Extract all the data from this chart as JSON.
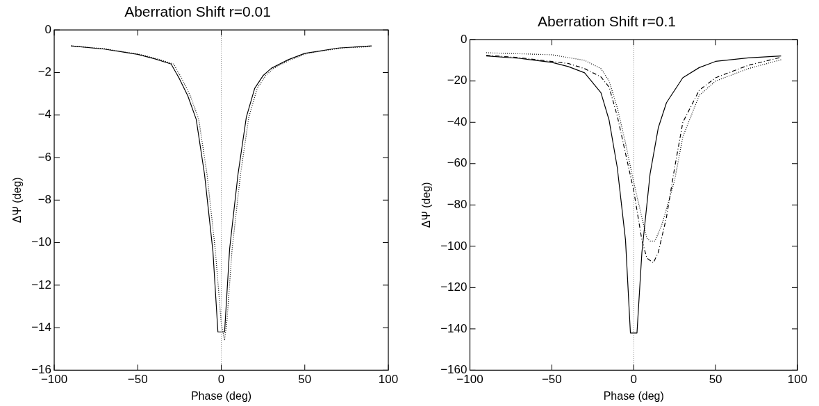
{
  "chart_data": [
    {
      "type": "line",
      "title": "Aberration Shift r=0.01",
      "xlabel": "Phase (deg)",
      "ylabel": "ΔΨ (deg)",
      "xlim": [
        -100,
        100
      ],
      "xticks": [
        -100,
        -50,
        0,
        50,
        100
      ],
      "ylim": [
        -16,
        0
      ],
      "yticks": [
        -16,
        -14,
        -12,
        -10,
        -8,
        -6,
        -4,
        -2,
        0
      ],
      "grid": false,
      "legend": false,
      "marker": "none",
      "ref_lines": [
        {
          "axis": "x",
          "value": 0,
          "color": "#808080",
          "line_style": "dotted"
        }
      ],
      "series": [
        {
          "color": "#000000",
          "line_style": "solid",
          "x": [
            -90,
            -70,
            -50,
            -40,
            -30,
            -25,
            -20,
            -15,
            -10,
            -5,
            -2,
            2,
            5,
            10,
            15,
            20,
            25,
            30,
            40,
            50,
            70,
            90
          ],
          "values": [
            -0.75,
            -0.9,
            -1.15,
            -1.35,
            -1.6,
            -2.3,
            -3.1,
            -4.2,
            -6.8,
            -10.4,
            -14.2,
            -14.2,
            -10.3,
            -6.8,
            -4.1,
            -2.75,
            -2.15,
            -1.8,
            -1.4,
            -1.1,
            -0.85,
            -0.75
          ]
        },
        {
          "color": "#000000",
          "line_style": "dotted",
          "x": [
            -90,
            -70,
            -48.5,
            -38.5,
            -28.5,
            -23.5,
            -18.5,
            -13.5,
            -8.5,
            -3.5,
            0,
            2,
            3.5,
            6.5,
            11.5,
            16.5,
            21.5,
            26.5,
            31.5,
            41.5,
            51.5,
            71.5,
            90
          ],
          "values": [
            -0.75,
            -0.88,
            -1.15,
            -1.35,
            -1.6,
            -2.3,
            -3.1,
            -4.2,
            -6.8,
            -10.4,
            -13.8,
            -14.6,
            -13.6,
            -10.3,
            -6.8,
            -4.1,
            -2.75,
            -2.15,
            -1.8,
            -1.4,
            -1.1,
            -0.85,
            -0.78
          ]
        }
      ]
    },
    {
      "type": "line",
      "title": "Aberration Shift r=0.1",
      "xlabel": "Phase (deg)",
      "ylabel": "ΔΨ (deg)",
      "xlim": [
        -100,
        100
      ],
      "xticks": [
        -100,
        -50,
        0,
        50,
        100
      ],
      "ylim": [
        -160,
        0
      ],
      "yticks": [
        -160,
        -140,
        -120,
        -100,
        -80,
        -60,
        -40,
        -20,
        0
      ],
      "grid": false,
      "legend": false,
      "marker": "none",
      "ref_lines": [
        {
          "axis": "x",
          "value": 0,
          "color": "#808080",
          "line_style": "dotted"
        }
      ],
      "series": [
        {
          "color": "#000000",
          "line_style": "solid",
          "x": [
            -90,
            -70,
            -50,
            -40,
            -30,
            -20,
            -15,
            -10,
            -5,
            -2,
            2,
            5,
            10,
            15,
            20,
            30,
            40,
            50,
            70,
            90
          ],
          "values": [
            -7.9,
            -9,
            -11,
            -13,
            -16,
            -25.7,
            -39,
            -62,
            -97,
            -142,
            -142,
            -103,
            -65,
            -42.7,
            -30.5,
            -18.4,
            -13.5,
            -10.5,
            -8.8,
            -7.9
          ]
        },
        {
          "color": "#000000",
          "line_style": "dashdot",
          "x": [
            -90,
            -70,
            -40,
            -30,
            -20,
            -15,
            -10,
            -5,
            0,
            5,
            8,
            12,
            15,
            20,
            25,
            30,
            40,
            50,
            70,
            90
          ],
          "values": [
            -7.5,
            -8.7,
            -11.5,
            -14,
            -18,
            -23,
            -37,
            -55,
            -73,
            -97,
            -105.7,
            -108,
            -103,
            -86,
            -62,
            -40,
            -24.5,
            -18.4,
            -12.4,
            -8.5
          ]
        },
        {
          "color": "#000000",
          "line_style": "dotted",
          "x": [
            -90,
            -50,
            -30,
            -20,
            -15,
            -10,
            -5,
            0,
            5,
            8,
            10,
            13,
            17,
            20,
            25,
            30,
            40,
            50,
            70,
            90
          ],
          "values": [
            -6.3,
            -7.3,
            -10,
            -14,
            -20,
            -33,
            -50,
            -69,
            -86,
            -96,
            -97.5,
            -97.5,
            -90,
            -82,
            -68,
            -47,
            -27,
            -20,
            -14,
            -9.7
          ]
        }
      ]
    }
  ]
}
